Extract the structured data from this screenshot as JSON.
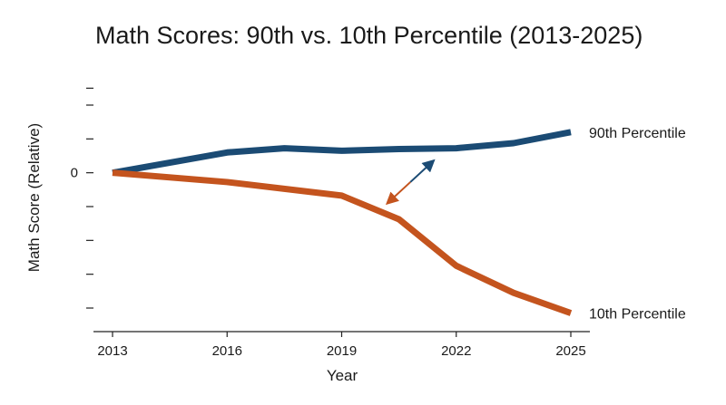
{
  "chart_data": {
    "type": "line",
    "title": "Math Scores: 90th vs. 10th Percentile (2013-2025)",
    "xlabel": "Year",
    "ylabel": "Math Score (Relative)",
    "xlim": [
      2013,
      2025
    ],
    "ylim": [
      -9.5,
      5.5
    ],
    "x_ticks": [
      2013,
      2016,
      2019,
      2022,
      2025
    ],
    "y_ticks": [
      5,
      4,
      2,
      0,
      -2,
      -4,
      -6,
      -8
    ],
    "y_tick_labels": [
      "",
      "",
      "",
      "0",
      "",
      "",
      "",
      ""
    ],
    "grid": false,
    "legend": "direct labels at line ends",
    "series": [
      {
        "name": "90th Percentile",
        "color": "#1b4b74",
        "x": [
          2013,
          2016,
          2017.5,
          2019,
          2020.5,
          2022,
          2023.5,
          2025
        ],
        "y": [
          0,
          1.2,
          1.45,
          1.3,
          1.4,
          1.45,
          1.75,
          2.4
        ]
      },
      {
        "name": "10th Percentile",
        "color": "#c4541e",
        "x": [
          2013,
          2016,
          2019,
          2020.5,
          2022,
          2023.5,
          2025
        ],
        "y": [
          0,
          -0.55,
          -1.35,
          -2.75,
          -5.5,
          -7.1,
          -8.3
        ]
      }
    ],
    "annotations": [
      {
        "type": "double-arrow",
        "from": [
          2020.2,
          -1.8
        ],
        "to": [
          2021.4,
          0.7
        ],
        "colors": [
          "#c4541e",
          "#1b4b74"
        ]
      }
    ]
  }
}
